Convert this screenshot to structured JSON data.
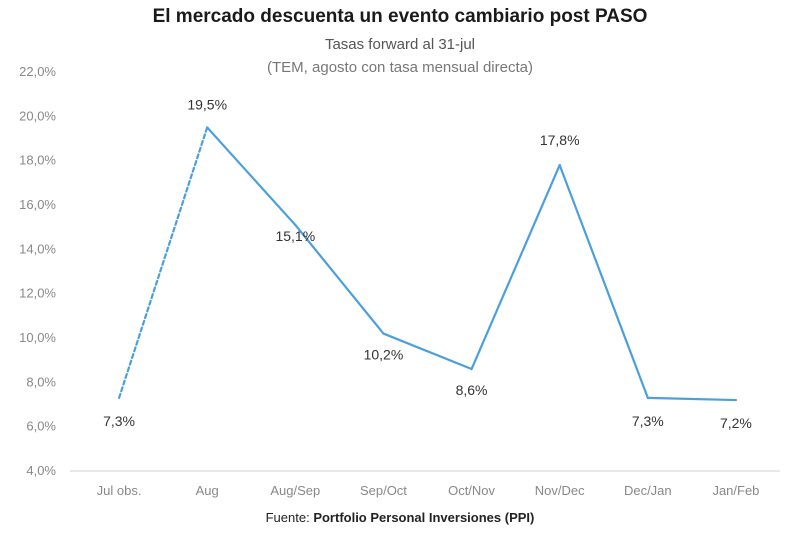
{
  "chart_data": {
    "type": "line",
    "title": "El mercado descuenta un evento cambiario post PASO",
    "subtitle": "Tasas forward al 31-jul",
    "note": "(TEM, agosto con tasa mensual directa)",
    "categories": [
      "Jul obs.",
      "Aug",
      "Aug/Sep",
      "Sep/Oct",
      "Oct/Nov",
      "Nov/Dec",
      "Dec/Jan",
      "Jan/Feb"
    ],
    "series": [
      {
        "values": [
          7.3,
          19.5,
          15.1,
          10.2,
          8.6,
          17.8,
          7.3,
          7.2
        ],
        "data_labels": [
          "7,3%",
          "19,5%",
          "15,1%",
          "10,2%",
          "8,6%",
          "17,8%",
          "7,3%",
          "7,2%"
        ]
      }
    ],
    "segment_styles": [
      "dashed",
      "solid",
      "solid",
      "solid",
      "solid",
      "solid",
      "solid"
    ],
    "ylim": [
      4,
      22
    ],
    "yticks": [
      4,
      6,
      8,
      10,
      12,
      14,
      16,
      18,
      20,
      22
    ],
    "ytick_labels": [
      "4,0%",
      "6,0%",
      "8,0%",
      "10,0%",
      "12,0%",
      "14,0%",
      "16,0%",
      "18,0%",
      "20,0%",
      "22,0%"
    ],
    "xlabel": "",
    "ylabel": "",
    "grid": false,
    "legend": "none",
    "line_color": "#4b9fdb"
  },
  "source": {
    "prefix": "Fuente: ",
    "org": "Portfolio Personal Inversiones (PPI)"
  }
}
